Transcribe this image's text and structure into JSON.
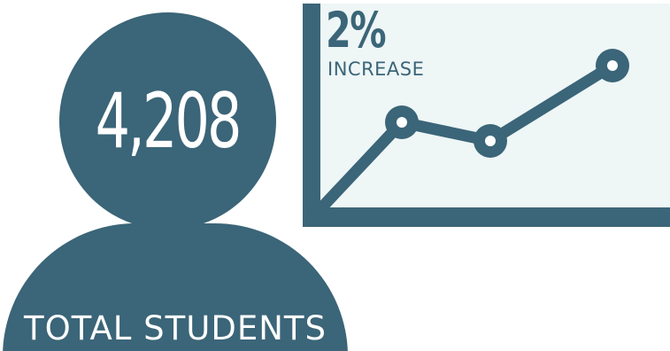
{
  "total_students": {
    "value": "4,208",
    "label": "TOTAL STUDENTS"
  },
  "increase": {
    "value": "2%",
    "label": "INCREASE"
  },
  "colors": {
    "primary": "#3b6578",
    "panel": "#eef6f6",
    "background": "#ffffff"
  },
  "icons": {
    "person": "person-icon",
    "trend_chart": "trend-line-chart-icon"
  }
}
